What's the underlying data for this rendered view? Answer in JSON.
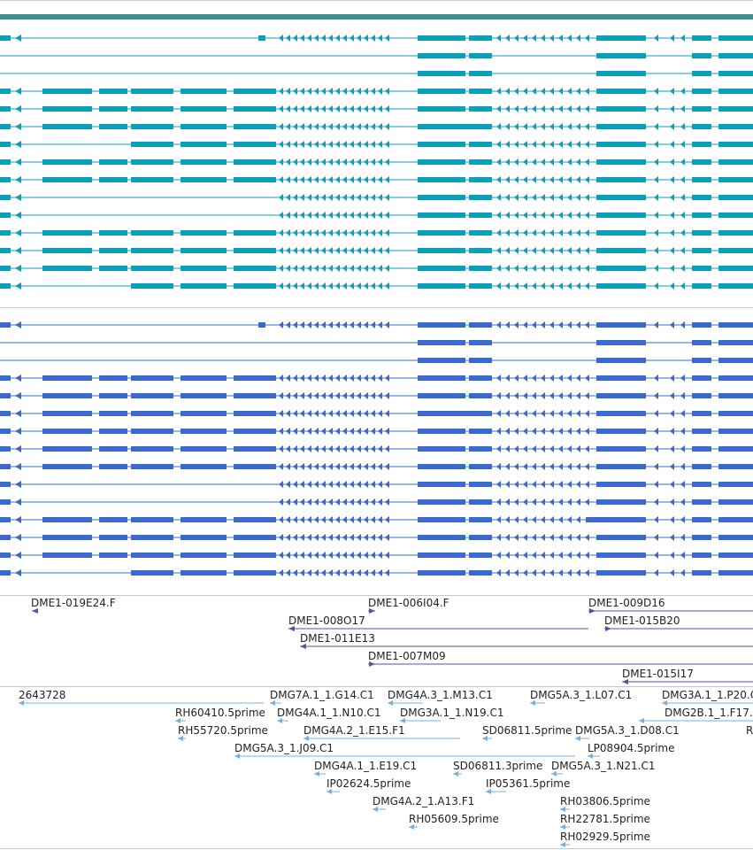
{
  "tracks": {
    "transcripts_a": {
      "color": "#0aa0bb"
    },
    "transcripts_b": {
      "color": "#3a6bcc"
    },
    "clones": {
      "color": "#6a4a9a",
      "items": [
        {
          "label": "DME1-019E24.F"
        },
        {
          "label": "DME1-006I04.F"
        },
        {
          "label": "DME1-009D16"
        },
        {
          "label": "DME1-008O17"
        },
        {
          "label": "DME1-015B20"
        },
        {
          "label": "DME1-011E13"
        },
        {
          "label": "DME1-007M09"
        },
        {
          "label": "DME1-015I17"
        }
      ]
    },
    "ests": {
      "color": "#7ab0d8",
      "items": [
        {
          "label": "2643728"
        },
        {
          "label": "DMG7A.1_1.G14.C1"
        },
        {
          "label": "DMG4A.3_1.M13.C1"
        },
        {
          "label": "DMG5A.3_1.L07.C1"
        },
        {
          "label": "DMG3A.1_1.P20.C"
        },
        {
          "label": "RH60410.5prime"
        },
        {
          "label": "DMG4A.1_1.N10.C1"
        },
        {
          "label": "DMG3A.1_1.N19.C1"
        },
        {
          "label": "DMG2B.1_1.F17."
        },
        {
          "label": "RH55720.5prime"
        },
        {
          "label": "DMG4A.2_1.E15.F1"
        },
        {
          "label": "SD06811.5prime"
        },
        {
          "label": "DMG5A.3_1.D08.C1"
        },
        {
          "label": "R"
        },
        {
          "label": "DMG5A.3_1.J09.C1"
        },
        {
          "label": "LP08904.5prime"
        },
        {
          "label": "DMG4A.1_1.E19.C1"
        },
        {
          "label": "SD06811.3prime"
        },
        {
          "label": "DMG5A.3_1.N21.C1"
        },
        {
          "label": "IP02624.5prime"
        },
        {
          "label": "IP05361.5prime"
        },
        {
          "label": "DMG4A.2_1.A13.F1"
        },
        {
          "label": "RH03806.5prime"
        },
        {
          "label": "RH05609.5prime"
        },
        {
          "label": "RH22781.5prime"
        },
        {
          "label": "RH02929.5prime"
        }
      ]
    }
  }
}
